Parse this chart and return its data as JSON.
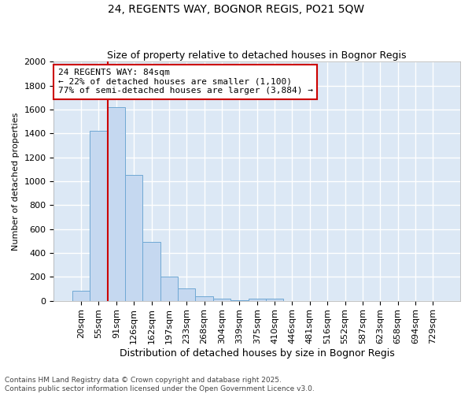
{
  "title1": "24, REGENTS WAY, BOGNOR REGIS, PO21 5QW",
  "title2": "Size of property relative to detached houses in Bognor Regis",
  "xlabel": "Distribution of detached houses by size in Bognor Regis",
  "ylabel": "Number of detached properties",
  "categories": [
    "20sqm",
    "55sqm",
    "91sqm",
    "126sqm",
    "162sqm",
    "197sqm",
    "233sqm",
    "268sqm",
    "304sqm",
    "339sqm",
    "375sqm",
    "410sqm",
    "446sqm",
    "481sqm",
    "516sqm",
    "552sqm",
    "587sqm",
    "623sqm",
    "658sqm",
    "694sqm",
    "729sqm"
  ],
  "values": [
    80,
    1420,
    1620,
    1050,
    490,
    200,
    100,
    35,
    20,
    5,
    15,
    15,
    0,
    0,
    0,
    0,
    0,
    0,
    0,
    0,
    0
  ],
  "bar_color": "#c5d8f0",
  "bar_edge_color": "#6fa8d4",
  "vline_x_index": 1.5,
  "vline_color": "#cc0000",
  "annotation_text": "24 REGENTS WAY: 84sqm\n← 22% of detached houses are smaller (1,100)\n77% of semi-detached houses are larger (3,884) →",
  "annotation_box_color": "#ffffff",
  "annotation_box_edge": "#cc0000",
  "ylim": [
    0,
    2000
  ],
  "yticks": [
    0,
    200,
    400,
    600,
    800,
    1000,
    1200,
    1400,
    1600,
    1800,
    2000
  ],
  "bg_color": "#dce8f5",
  "grid_color": "#ffffff",
  "fig_bg_color": "#ffffff",
  "footer1": "Contains HM Land Registry data © Crown copyright and database right 2025.",
  "footer2": "Contains public sector information licensed under the Open Government Licence v3.0.",
  "title1_fontsize": 10,
  "title2_fontsize": 9,
  "xlabel_fontsize": 9,
  "ylabel_fontsize": 8,
  "tick_fontsize": 8,
  "footer_fontsize": 6.5,
  "annotation_fontsize": 8
}
